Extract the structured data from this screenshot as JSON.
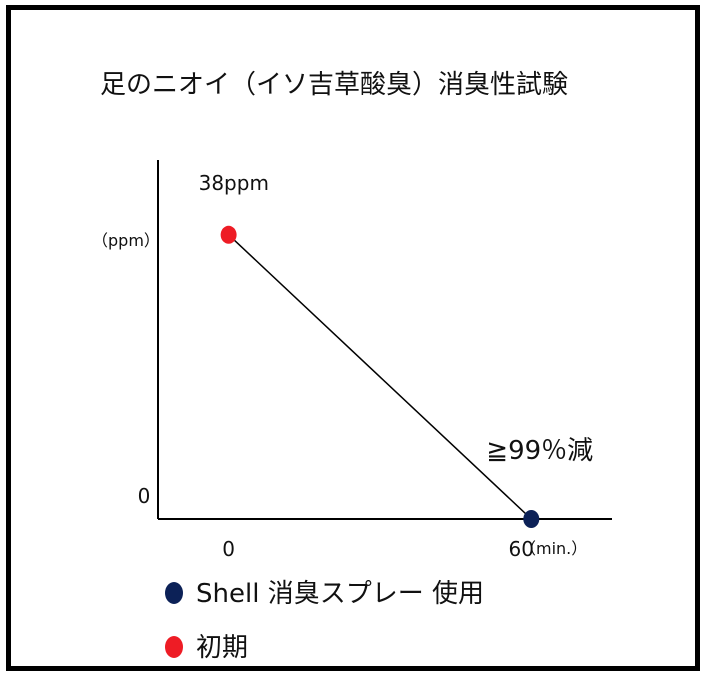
{
  "chart_data": {
    "type": "line",
    "title": "足のニオイ（イソ吉草酸臭）消臭性試験",
    "xlabel": "",
    "ylabel": "",
    "y_unit_label": "（ppm）",
    "x_unit_label": "（min.）",
    "x_ticks": [
      "0",
      "60"
    ],
    "y_ticks": [
      "0"
    ],
    "xlim": [
      -14,
      76
    ],
    "ylim": [
      0,
      48
    ],
    "grid": false,
    "legend_position": "bottom-left",
    "series": [
      {
        "x": [
          0,
          60
        ],
        "y": [
          38,
          0
        ]
      }
    ],
    "points": [
      {
        "x": 0,
        "y": 38,
        "color": "#ee1c25",
        "label": "38ppm"
      },
      {
        "x": 60,
        "y": 0,
        "color": "#0c2157",
        "label": "≧99％減"
      }
    ],
    "legend": [
      {
        "label": "Shell 消臭スプレー 使用",
        "color": "#0c2157"
      },
      {
        "label": "初期",
        "color": "#ee1c25"
      }
    ]
  },
  "colors": {
    "frame": "#000000",
    "line": "#000000",
    "initial": "#ee1c25",
    "after": "#0c2157"
  }
}
